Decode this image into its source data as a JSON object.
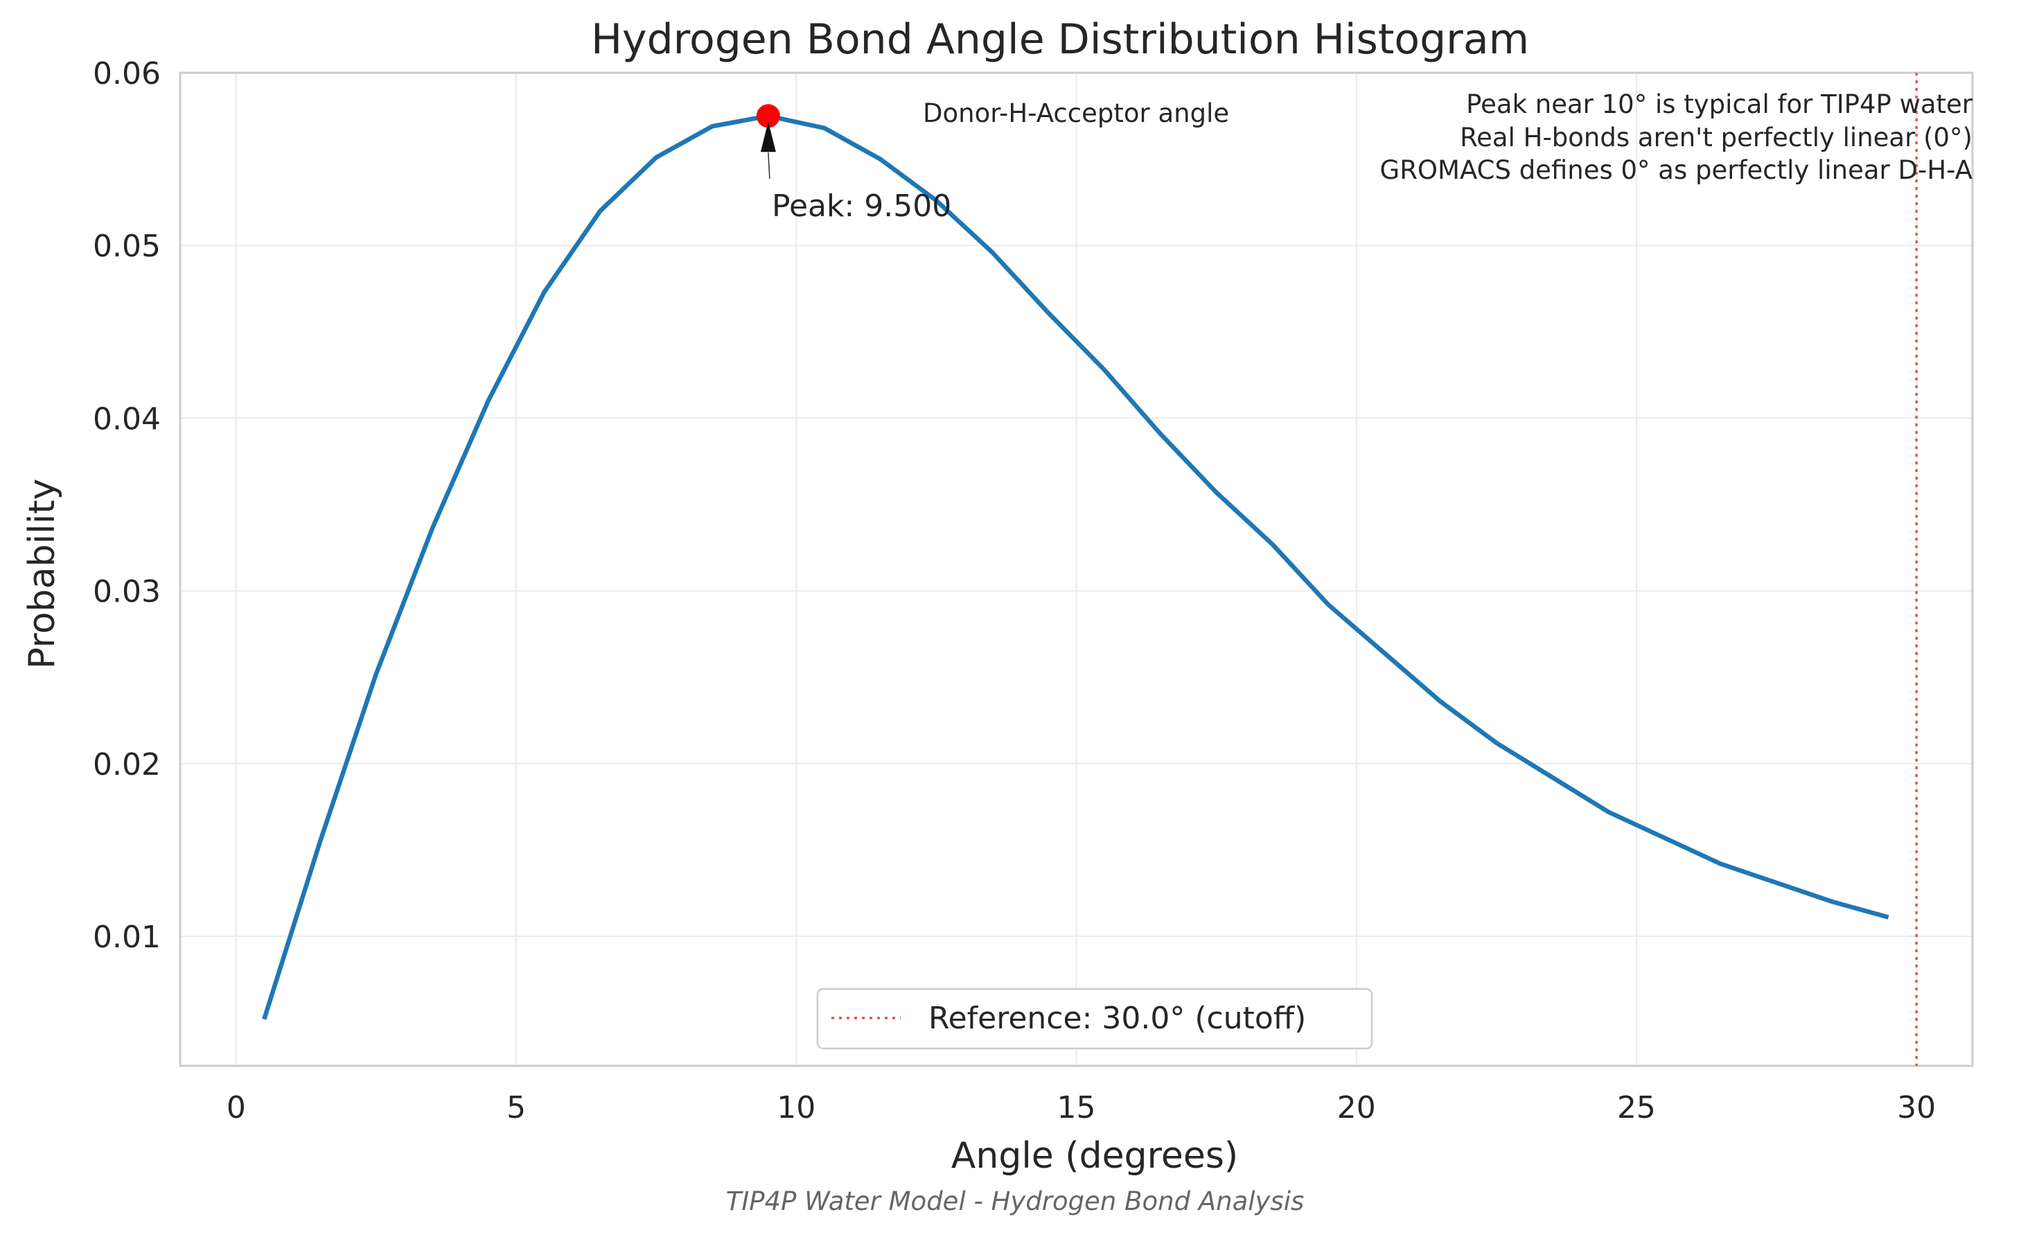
{
  "chart_data": {
    "type": "line",
    "title": "Hydrogen Bond Angle Distribution Histogram",
    "xlabel": "Angle (degrees)",
    "ylabel": "Probability",
    "xlim": [
      -1,
      31
    ],
    "ylim": [
      0.0025,
      0.06
    ],
    "xticks": [
      "0",
      "5",
      "10",
      "15",
      "20",
      "25",
      "30"
    ],
    "yticks": [
      "0.01",
      "0.02",
      "0.03",
      "0.04",
      "0.05",
      "0.06"
    ],
    "grid": true,
    "x": [
      0.5,
      1.5,
      2.5,
      3.5,
      4.5,
      5.5,
      6.5,
      7.5,
      8.5,
      9.5,
      10.5,
      11.5,
      12.5,
      13.5,
      14.5,
      15.5,
      16.5,
      17.5,
      18.5,
      19.5,
      20.5,
      21.5,
      22.5,
      23.5,
      24.5,
      25.5,
      26.5,
      27.5,
      28.5,
      29.5
    ],
    "series": [
      {
        "color": "#1f77b4",
        "values": [
          0.0052,
          0.0155,
          0.0252,
          0.0336,
          0.041,
          0.0473,
          0.052,
          0.0551,
          0.0569,
          0.0575,
          0.0568,
          0.055,
          0.0526,
          0.0496,
          0.0461,
          0.0428,
          0.0391,
          0.0357,
          0.0327,
          0.0292,
          0.0264,
          0.0236,
          0.0212,
          0.0192,
          0.0172,
          0.0157,
          0.0142,
          0.0131,
          0.012,
          0.0111
        ]
      }
    ],
    "peak": {
      "x": 9.5,
      "y": 0.0575,
      "label": "Peak: 9.500",
      "color": "#ff0000"
    },
    "reference_line": {
      "x": 30.0,
      "color": "#e05555",
      "style": "dotted"
    },
    "legend": {
      "position": "bottom-center",
      "entries": [
        "Reference: 30.0° (cutoff)"
      ]
    },
    "annotations": {
      "inline_note": "Donor-H-Acceptor angle",
      "notes": [
        "Peak near 10° is typical for TIP4P water",
        "Real H-bonds aren't perfectly linear (0°)",
        "GROMACS defines 0° as perfectly linear D-H-A"
      ]
    },
    "footer": "TIP4P Water Model - Hydrogen Bond Analysis"
  }
}
